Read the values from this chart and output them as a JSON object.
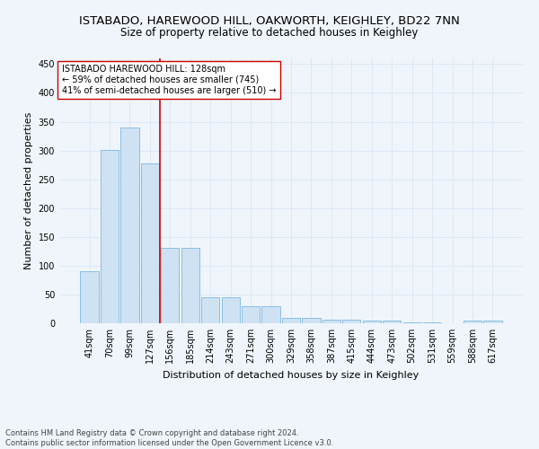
{
  "title": "ISTABADO, HAREWOOD HILL, OAKWORTH, KEIGHLEY, BD22 7NN",
  "subtitle": "Size of property relative to detached houses in Keighley",
  "xlabel": "Distribution of detached houses by size in Keighley",
  "ylabel": "Number of detached properties",
  "footer_line1": "Contains HM Land Registry data © Crown copyright and database right 2024.",
  "footer_line2": "Contains public sector information licensed under the Open Government Licence v3.0.",
  "categories": [
    "41sqm",
    "70sqm",
    "99sqm",
    "127sqm",
    "156sqm",
    "185sqm",
    "214sqm",
    "243sqm",
    "271sqm",
    "300sqm",
    "329sqm",
    "358sqm",
    "387sqm",
    "415sqm",
    "444sqm",
    "473sqm",
    "502sqm",
    "531sqm",
    "559sqm",
    "588sqm",
    "617sqm"
  ],
  "values": [
    91,
    301,
    340,
    278,
    131,
    131,
    46,
    46,
    30,
    30,
    9,
    9,
    7,
    7,
    4,
    4,
    1,
    1,
    0,
    4,
    4
  ],
  "bar_color": "#cfe2f3",
  "bar_edge_color": "#7ab8e0",
  "grid_color": "#dce8f5",
  "red_line_x": 3.5,
  "annotation_text": "ISTABADO HAREWOOD HILL: 128sqm\n← 59% of detached houses are smaller (745)\n41% of semi-detached houses are larger (510) →",
  "annotation_box_color": "#ffffff",
  "annotation_box_edge_color": "#cc0000",
  "ylim": [
    0,
    460
  ],
  "title_fontsize": 9.5,
  "subtitle_fontsize": 8.5,
  "tick_fontsize": 7,
  "ylabel_fontsize": 8,
  "xlabel_fontsize": 8,
  "annotation_fontsize": 7,
  "background_color": "#f0f5fb",
  "footer_fontsize": 6,
  "footer_color": "#444444"
}
